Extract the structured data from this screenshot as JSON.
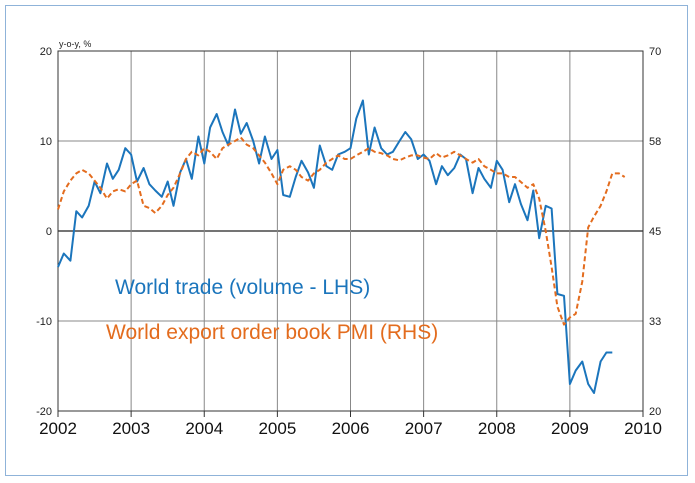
{
  "chart_data": {
    "type": "line",
    "unit_label": "y-o-y, %",
    "x_tick_labels": [
      "2002",
      "2003",
      "2004",
      "2005",
      "2006",
      "2007",
      "2008",
      "2009",
      "2010"
    ],
    "x_range": [
      2002,
      2010
    ],
    "y_left": {
      "range": [
        -20,
        20
      ],
      "ticks": [
        "20",
        "10",
        "0",
        "-10",
        "-20"
      ]
    },
    "y_right": {
      "range": [
        20,
        70
      ],
      "ticks": [
        "70",
        "58",
        "45",
        "33",
        "20"
      ]
    },
    "grid": true,
    "colors": {
      "trade": "#1b75bc",
      "pmi": "#e36c1e"
    },
    "series": [
      {
        "name": "World trade (volume - LHS)",
        "axis": "left",
        "style": "solid",
        "x": [
          2002.0,
          2002.08,
          2002.17,
          2002.25,
          2002.33,
          2002.42,
          2002.5,
          2002.58,
          2002.67,
          2002.75,
          2002.83,
          2002.92,
          2003.0,
          2003.08,
          2003.17,
          2003.25,
          2003.33,
          2003.42,
          2003.5,
          2003.58,
          2003.67,
          2003.75,
          2003.83,
          2003.92,
          2004.0,
          2004.08,
          2004.17,
          2004.25,
          2004.33,
          2004.42,
          2004.5,
          2004.58,
          2004.67,
          2004.75,
          2004.83,
          2004.92,
          2005.0,
          2005.08,
          2005.17,
          2005.25,
          2005.33,
          2005.42,
          2005.5,
          2005.58,
          2005.67,
          2005.75,
          2005.83,
          2005.92,
          2006.0,
          2006.08,
          2006.17,
          2006.25,
          2006.33,
          2006.42,
          2006.5,
          2006.58,
          2006.67,
          2006.75,
          2006.83,
          2006.92,
          2007.0,
          2007.08,
          2007.17,
          2007.25,
          2007.33,
          2007.42,
          2007.5,
          2007.58,
          2007.67,
          2007.75,
          2007.83,
          2007.92,
          2008.0,
          2008.08,
          2008.17,
          2008.25,
          2008.33,
          2008.42,
          2008.5,
          2008.58,
          2008.67,
          2008.75,
          2008.83,
          2008.92,
          2009.0,
          2009.08,
          2009.17,
          2009.25,
          2009.33,
          2009.42,
          2009.5,
          2009.58
        ],
        "values": [
          -4,
          -2.5,
          -3.3,
          2.2,
          1.5,
          2.8,
          5.5,
          4.2,
          7.5,
          5.8,
          6.8,
          9.2,
          8.5,
          5.5,
          7,
          5.2,
          4.5,
          3.8,
          5.5,
          2.8,
          6.5,
          8,
          5.8,
          10.5,
          7.5,
          11.5,
          13,
          11,
          9.5,
          13.5,
          10.8,
          12,
          10,
          7.5,
          10.5,
          8,
          9,
          4,
          3.8,
          6,
          7.8,
          6.5,
          4.8,
          9.5,
          7.2,
          6.8,
          8.5,
          8.8,
          9.2,
          12.5,
          14.5,
          8.5,
          11.5,
          9.2,
          8.5,
          8.8,
          10,
          11,
          10.2,
          8,
          8.5,
          7.8,
          5.2,
          7.2,
          6.2,
          7,
          8.5,
          8,
          4.2,
          7,
          5.8,
          4.8,
          7.8,
          6.8,
          3.2,
          5.2,
          3,
          1.2,
          4.5,
          -0.8,
          2.8,
          2.5,
          -7,
          -7.2,
          -17,
          -15.5,
          -14.5,
          -17,
          -18,
          -14.5,
          -13.5,
          -13.5
        ]
      },
      {
        "name": "World export order book PMI (RHS)",
        "axis": "right",
        "style": "dashed",
        "x": [
          2002.0,
          2002.08,
          2002.17,
          2002.25,
          2002.33,
          2002.42,
          2002.5,
          2002.58,
          2002.67,
          2002.75,
          2002.83,
          2002.92,
          2003.0,
          2003.08,
          2003.17,
          2003.25,
          2003.33,
          2003.42,
          2003.5,
          2003.58,
          2003.67,
          2003.75,
          2003.83,
          2003.92,
          2004.0,
          2004.08,
          2004.17,
          2004.25,
          2004.33,
          2004.42,
          2004.5,
          2004.58,
          2004.67,
          2004.75,
          2004.83,
          2004.92,
          2005.0,
          2005.08,
          2005.17,
          2005.25,
          2005.33,
          2005.42,
          2005.5,
          2005.58,
          2005.67,
          2005.75,
          2005.83,
          2005.92,
          2006.0,
          2006.08,
          2006.17,
          2006.25,
          2006.33,
          2006.42,
          2006.5,
          2006.58,
          2006.67,
          2006.75,
          2006.83,
          2006.92,
          2007.0,
          2007.08,
          2007.17,
          2007.25,
          2007.33,
          2007.42,
          2007.5,
          2007.58,
          2007.67,
          2007.75,
          2007.83,
          2007.92,
          2008.0,
          2008.08,
          2008.17,
          2008.25,
          2008.33,
          2008.42,
          2008.5,
          2008.58,
          2008.67,
          2008.75,
          2008.83,
          2008.92,
          2009.0,
          2009.08,
          2009.17,
          2009.25,
          2009.33,
          2009.42,
          2009.5,
          2009.58,
          2009.67,
          2009.75
        ],
        "values": [
          48,
          50.5,
          52,
          53,
          53.5,
          53,
          52,
          51,
          49.5,
          50.5,
          50.8,
          50.5,
          51.5,
          52,
          48.5,
          48.2,
          47.5,
          48.5,
          50,
          51,
          53,
          55,
          56,
          55.5,
          56.5,
          56,
          55,
          56.5,
          57,
          57.5,
          58,
          57,
          56.5,
          55.5,
          54.5,
          53,
          51.5,
          53.5,
          54,
          53.5,
          52.5,
          52,
          53,
          53.5,
          54.5,
          55,
          55.5,
          55,
          55,
          55.5,
          56,
          56.5,
          56,
          55.8,
          55.5,
          55,
          54.8,
          55.2,
          55.5,
          55.5,
          55.2,
          55,
          55.8,
          55.2,
          55.5,
          56,
          55.5,
          55,
          54.5,
          55,
          54,
          53.5,
          53,
          53,
          52.5,
          52.5,
          51.8,
          51,
          51.5,
          49.5,
          45,
          40,
          34.5,
          32,
          33,
          33.5,
          38,
          45.5,
          47,
          48.5,
          50.5,
          53,
          53,
          52.5
        ]
      }
    ]
  }
}
